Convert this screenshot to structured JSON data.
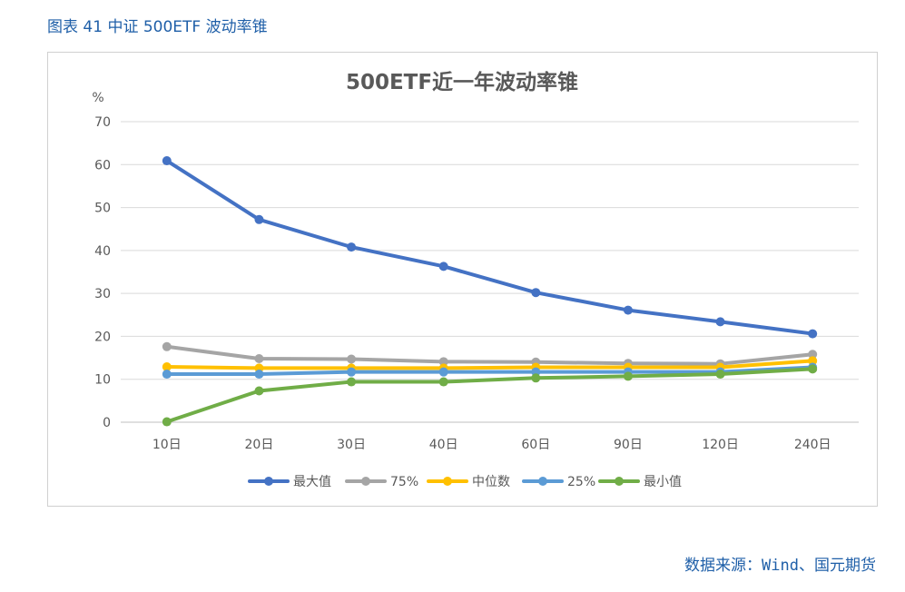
{
  "figure_caption": "图表 41  中证 500ETF 波动率锥",
  "source_note": "数据来源：Wind、国元期货",
  "chart_data": {
    "type": "line",
    "title": "500ETF近一年波动率锥",
    "ylabel": "%",
    "xlabel": "",
    "categories": [
      "10日",
      "20日",
      "30日",
      "40日",
      "60日",
      "90日",
      "120日",
      "240日"
    ],
    "ylim": [
      0,
      70
    ],
    "yticks": [
      0,
      10,
      20,
      30,
      40,
      50,
      60,
      70
    ],
    "grid": true,
    "legend_position": "bottom",
    "series": [
      {
        "name": "最大值",
        "color": "#4472c4",
        "values": [
          60.9,
          47.2,
          40.8,
          36.3,
          30.2,
          26.1,
          23.4,
          20.6
        ]
      },
      {
        "name": "75%",
        "color": "#a5a5a5",
        "values": [
          17.6,
          14.8,
          14.7,
          14.1,
          14.0,
          13.7,
          13.6,
          15.8
        ]
      },
      {
        "name": "中位数",
        "color": "#ffc000",
        "values": [
          12.9,
          12.6,
          12.6,
          12.6,
          12.8,
          12.8,
          12.8,
          14.3
        ]
      },
      {
        "name": "25%",
        "color": "#5b9bd5",
        "values": [
          11.2,
          11.2,
          11.7,
          11.7,
          11.7,
          11.7,
          11.7,
          12.8
        ]
      },
      {
        "name": "最小值",
        "color": "#70ad47",
        "values": [
          0.1,
          7.3,
          9.4,
          9.4,
          10.3,
          10.7,
          11.2,
          12.4
        ]
      }
    ]
  }
}
